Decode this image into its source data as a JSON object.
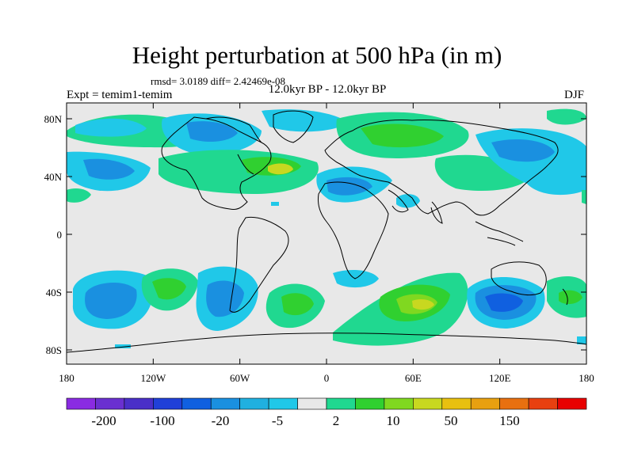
{
  "header": {
    "title": "Height perturbation at 500 hPa (in m)",
    "stats": "rmsd= 3.0189 diff= 2.42469e-08",
    "period": "12.0kyr BP - 12.0kyr BP",
    "experiment": "Expt = temim1-temim",
    "season": "DJF"
  },
  "map": {
    "lat_ticks": [
      "80N",
      "40N",
      "0",
      "40S",
      "80S"
    ],
    "lon_ticks": [
      "180",
      "120W",
      "60W",
      "0",
      "60E",
      "120E",
      "180"
    ],
    "background_color": "#e8e8e8",
    "coastline_color": "#000000"
  },
  "colorbar": {
    "labels": [
      "-200",
      "-100",
      "-20",
      "-5",
      "2",
      "10",
      "50",
      "150"
    ],
    "colors": [
      "#8a2be2",
      "#6a30d0",
      "#4a2fc8",
      "#2040d8",
      "#1060e0",
      "#1a90e0",
      "#20b0e0",
      "#20c8e8",
      "#e8e8e8",
      "#20d890",
      "#30d030",
      "#80d820",
      "#c8d820",
      "#e8c010",
      "#e8a010",
      "#e87010",
      "#e84010",
      "#e80000"
    ]
  }
}
